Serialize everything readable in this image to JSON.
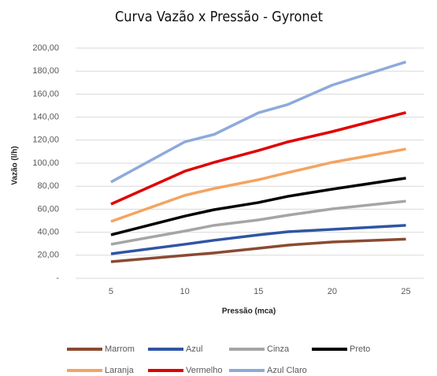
{
  "chart_data": {
    "type": "line",
    "title": "Curva Vazão x Pressão - Gyronet",
    "x_label": "Pressão (mca)",
    "y_label": "Vazão (l/h)",
    "x": [
      5,
      10,
      12,
      15,
      17,
      20,
      25
    ],
    "xlim": [
      2.6,
      26.2
    ],
    "xticks": [
      5,
      10,
      15,
      20,
      25
    ],
    "ylim": [
      0,
      200
    ],
    "yticks": [
      {
        "value": 0,
        "label": "-"
      },
      {
        "value": 20,
        "label": "20,00"
      },
      {
        "value": 40,
        "label": "40,00"
      },
      {
        "value": 60,
        "label": "60,00"
      },
      {
        "value": 80,
        "label": "80,00"
      },
      {
        "value": 100,
        "label": "100,00"
      },
      {
        "value": 120,
        "label": "120,00"
      },
      {
        "value": 140,
        "label": "140,00"
      },
      {
        "value": 160,
        "label": "160,00"
      },
      {
        "value": 180,
        "label": "180,00"
      },
      {
        "value": 200,
        "label": "200,00"
      }
    ],
    "grid": true,
    "legend": "bottom",
    "series": [
      {
        "name": "Marrom",
        "color": "#8b4a32",
        "values": [
          14.4,
          19.9,
          22,
          26,
          28.8,
          31.5,
          34
        ]
      },
      {
        "name": "Azul",
        "color": "#2f55a4",
        "values": [
          21.2,
          29.5,
          33,
          37.7,
          40.4,
          42.5,
          46
        ]
      },
      {
        "name": "Cinza",
        "color": "#a5a5a5",
        "values": [
          29.5,
          41,
          46,
          50.7,
          54.8,
          60.3,
          67
        ]
      },
      {
        "name": "Preto",
        "color": "#000000",
        "values": [
          37.7,
          54,
          59.6,
          65.8,
          71.2,
          77.4,
          87
        ]
      },
      {
        "name": "Laranja",
        "color": "#f4a460",
        "values": [
          49.3,
          72,
          78,
          85.6,
          91.8,
          100.7,
          112.3
        ]
      },
      {
        "name": "Vermelho",
        "color": "#e00000",
        "values": [
          64.4,
          93,
          100.7,
          111,
          118.5,
          127.4,
          144
        ]
      },
      {
        "name": "Azul Claro",
        "color": "#8eaadb",
        "values": [
          83.6,
          118.5,
          125,
          143.8,
          151,
          167.8,
          188
        ]
      }
    ]
  }
}
